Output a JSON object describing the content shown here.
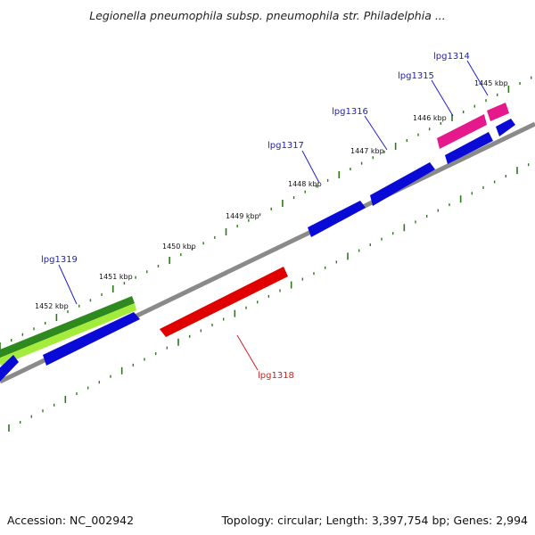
{
  "title": "Legionella pneumophila subsp. pneumophila str. Philadelphia ...",
  "footer": {
    "accession": "Accession: NC_002942",
    "summary": "Topology: circular; Length: 3,397,754 bp; Genes: 2,994"
  },
  "scale_labels": [
    "1445 kbp",
    "1446 kbp",
    "1447 kbp",
    "1448 kbp",
    "1449 kbp",
    "1450 kbp",
    "1451 kbp",
    "1452 kbp"
  ],
  "genes": [
    {
      "name": "lpg1314",
      "color": "#1d1db8"
    },
    {
      "name": "lpg1315",
      "color": "#1d1db8"
    },
    {
      "name": "lpg1316",
      "color": "#1d1db8"
    },
    {
      "name": "lpg1317",
      "color": "#1d1db8"
    },
    {
      "name": "lpg1318",
      "color": "#d42020"
    },
    {
      "name": "lpg1319",
      "color": "#1d1db8"
    }
  ],
  "colors": {
    "forward_gene": "#0a0ad6",
    "reverse_gene": "#e00000",
    "rna_gene": "#e6198c",
    "cds_track_dark": "#2e8a1e",
    "cds_track_light": "#9ae838",
    "backbone": "#888888",
    "tick": "#2a7a1a"
  }
}
